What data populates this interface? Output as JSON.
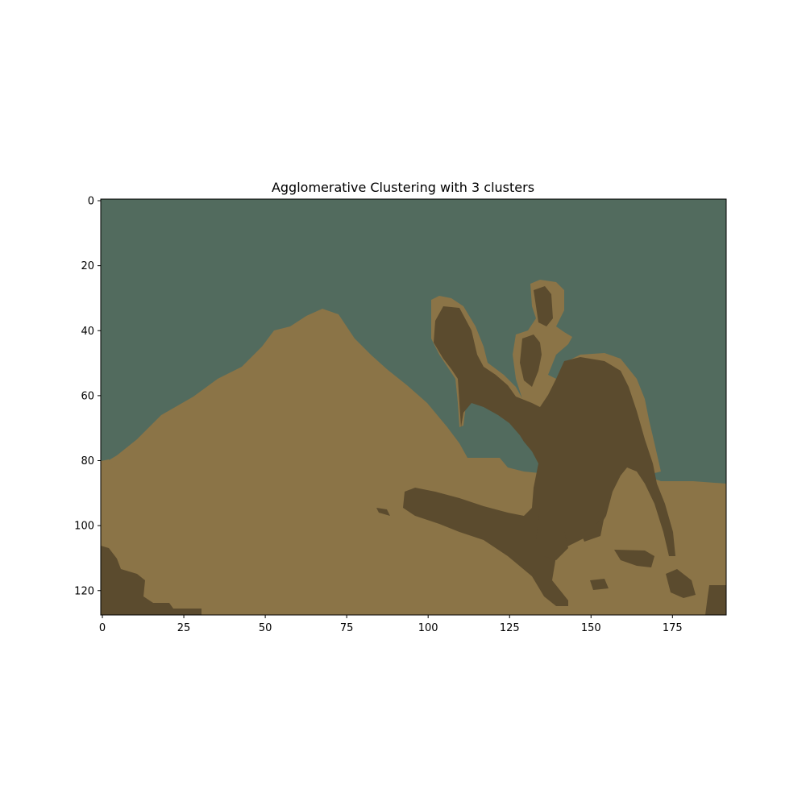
{
  "figure": {
    "title": "Agglomerative Clustering with 3 clusters"
  },
  "image": {
    "description": "Segmented image of a camel and rider in a desert with three color clusters",
    "rows": 128,
    "cols": 192,
    "clusters": [
      {
        "name": "sky",
        "color": "#526b5e"
      },
      {
        "name": "sand",
        "color": "#8b7447"
      },
      {
        "name": "shadow",
        "color": "#5b4b2e"
      }
    ]
  },
  "axes": {
    "x_ticks": [
      0,
      25,
      50,
      75,
      100,
      125,
      150,
      175
    ],
    "y_ticks": [
      0,
      20,
      40,
      60,
      80,
      100,
      120
    ],
    "x_range": [
      -0.5,
      191.5
    ],
    "y_range": [
      127.5,
      -0.5
    ]
  }
}
